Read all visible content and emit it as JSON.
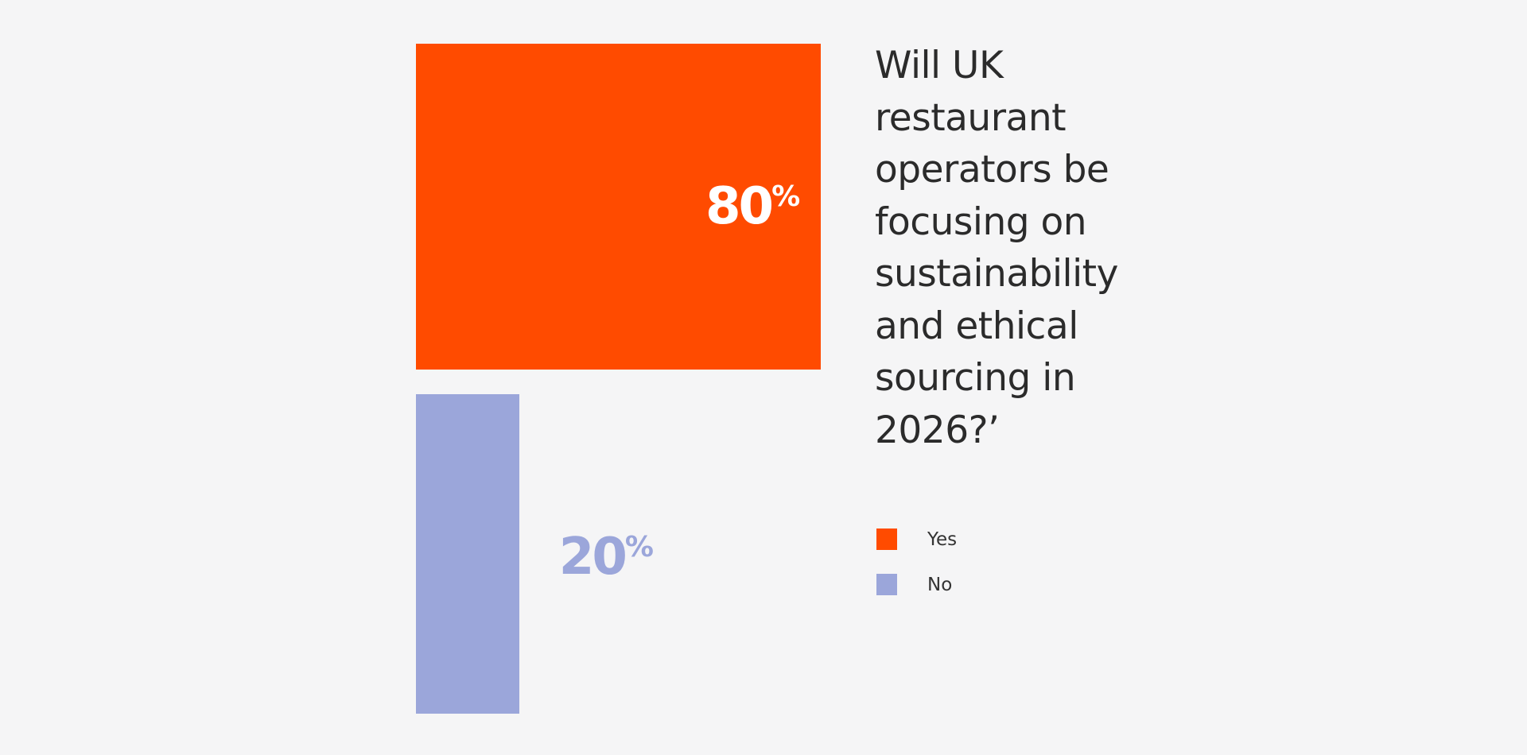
{
  "chart_data": {
    "type": "bar",
    "title": "Will UK restaurant operators be focusing on sustainability and ethical sourcing in 2026?’",
    "categories": [
      "Yes",
      "No"
    ],
    "values": [
      80,
      20
    ],
    "value_labels": [
      "80%",
      "20%"
    ],
    "colors": {
      "Yes": "#ff4b00",
      "No": "#9ba6da"
    },
    "legend": {
      "position": "right",
      "entries": [
        "Yes",
        "No"
      ]
    },
    "grid": false
  },
  "colors": {
    "background": "#f5f5f6",
    "text": "#2b2b2b"
  }
}
